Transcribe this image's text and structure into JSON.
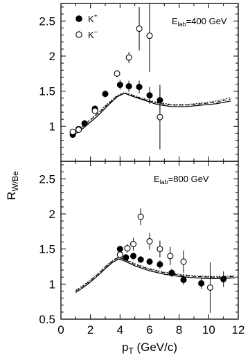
{
  "chart_data": [
    {
      "type": "scatter",
      "annotation": "E_lab=400 GeV",
      "ann_main": "E",
      "ann_sub": "lab",
      "ann_rest": "=400 GeV",
      "xlim": [
        0,
        12
      ],
      "ylim": [
        0.5,
        2.75
      ],
      "yticks": [
        0.5,
        1,
        1.5,
        2,
        2.5
      ],
      "ytick_labels": [
        "0.5",
        "1",
        "1.5",
        "2",
        "2.5"
      ],
      "legend": [
        {
          "label": "K",
          "sup": "+",
          "marker": "filled-circle"
        },
        {
          "label": "K",
          "sup": "−",
          "marker": "open-circle"
        }
      ],
      "series": [
        {
          "name": "K+",
          "marker": "filled",
          "points": [
            {
              "x": 0.8,
              "y": 0.88,
              "err": 0.03
            },
            {
              "x": 1.2,
              "y": 0.96,
              "err": 0.03
            },
            {
              "x": 1.6,
              "y": 1.04,
              "err": 0.03
            },
            {
              "x": 2.3,
              "y": 1.25,
              "err": 0.04
            },
            {
              "x": 3.0,
              "y": 1.46,
              "err": 0.05
            },
            {
              "x": 4.0,
              "y": 1.59,
              "err": 0.07
            },
            {
              "x": 4.6,
              "y": 1.57,
              "err": 0.08
            },
            {
              "x": 5.3,
              "y": 1.56,
              "err": 0.09
            },
            {
              "x": 6.0,
              "y": 1.44,
              "err": 0.12
            },
            {
              "x": 6.7,
              "y": 1.37,
              "err": 0.17
            }
          ]
        },
        {
          "name": "K−",
          "marker": "open",
          "points": [
            {
              "x": 0.8,
              "y": 0.92,
              "err": 0.03
            },
            {
              "x": 1.2,
              "y": 0.95,
              "err": 0.03
            },
            {
              "x": 2.3,
              "y": 1.22,
              "err": 0.04
            },
            {
              "x": 3.8,
              "y": 1.75,
              "err": 0.05
            },
            {
              "x": 4.6,
              "y": 1.98,
              "err": 0.08
            },
            {
              "x": 5.3,
              "y": 2.39,
              "err": 0.31
            },
            {
              "x": 6.0,
              "y": 2.29,
              "err": 0.52
            },
            {
              "x": 6.7,
              "y": 1.13,
              "err": 0.46
            }
          ]
        }
      ],
      "curves": [
        {
          "style": "solid",
          "points": [
            [
              0.7,
              0.85
            ],
            [
              1.5,
              0.97
            ],
            [
              2.5,
              1.15
            ],
            [
              3.2,
              1.3
            ],
            [
              3.8,
              1.42
            ],
            [
              4.3,
              1.47
            ],
            [
              4.8,
              1.43
            ],
            [
              5.5,
              1.38
            ],
            [
              6.5,
              1.31
            ],
            [
              7.5,
              1.28
            ],
            [
              8.5,
              1.28
            ],
            [
              9.5,
              1.3
            ],
            [
              10.5,
              1.32
            ],
            [
              11.5,
              1.36
            ]
          ]
        },
        {
          "style": "dashed",
          "points": [
            [
              0.7,
              0.87
            ],
            [
              1.5,
              1.0
            ],
            [
              2.5,
              1.18
            ],
            [
              3.2,
              1.32
            ],
            [
              3.8,
              1.43
            ],
            [
              4.3,
              1.47
            ],
            [
              4.8,
              1.44
            ],
            [
              5.5,
              1.39
            ],
            [
              6.5,
              1.33
            ],
            [
              7.5,
              1.3
            ],
            [
              8.5,
              1.3
            ],
            [
              9.5,
              1.32
            ],
            [
              10.5,
              1.34
            ],
            [
              11.5,
              1.39
            ]
          ]
        },
        {
          "style": "dotted",
          "points": [
            [
              0.7,
              0.88
            ],
            [
              1.5,
              1.01
            ],
            [
              2.5,
              1.19
            ],
            [
              3.2,
              1.33
            ],
            [
              3.8,
              1.44
            ],
            [
              4.3,
              1.48
            ],
            [
              4.8,
              1.45
            ],
            [
              5.5,
              1.4
            ],
            [
              6.5,
              1.34
            ],
            [
              7.5,
              1.31
            ],
            [
              8.5,
              1.31
            ],
            [
              9.5,
              1.33
            ],
            [
              10.5,
              1.36
            ],
            [
              11.5,
              1.41
            ]
          ]
        }
      ]
    },
    {
      "type": "scatter",
      "annotation": "E_lab=800 GeV",
      "ann_main": "E",
      "ann_sub": "lab",
      "ann_rest": "=800 GeV",
      "xlim": [
        0,
        12
      ],
      "ylim": [
        0.5,
        2.75
      ],
      "xticks": [
        0,
        2,
        4,
        6,
        8,
        10,
        12
      ],
      "xtick_labels": [
        "0",
        "2",
        "4",
        "6",
        "8",
        "10",
        "12"
      ],
      "yticks": [
        0.5,
        1,
        1.5,
        2,
        2.5
      ],
      "ytick_labels": [
        "0.5",
        "1",
        "1.5",
        "2",
        "2.5"
      ],
      "series": [
        {
          "name": "K+",
          "marker": "filled",
          "points": [
            {
              "x": 4.0,
              "y": 1.5,
              "err": 0.04
            },
            {
              "x": 4.4,
              "y": 1.38,
              "err": 0.04
            },
            {
              "x": 4.9,
              "y": 1.4,
              "err": 0.05
            },
            {
              "x": 5.4,
              "y": 1.35,
              "err": 0.05
            },
            {
              "x": 6.0,
              "y": 1.32,
              "err": 0.05
            },
            {
              "x": 6.7,
              "y": 1.28,
              "err": 0.06
            },
            {
              "x": 7.5,
              "y": 1.16,
              "err": 0.06
            },
            {
              "x": 8.3,
              "y": 1.06,
              "err": 0.07
            },
            {
              "x": 9.5,
              "y": 1.01,
              "err": 0.08
            },
            {
              "x": 11.0,
              "y": 1.07,
              "err": 0.11
            }
          ]
        },
        {
          "name": "K−",
          "marker": "open",
          "points": [
            {
              "x": 4.0,
              "y": 1.42,
              "err": 0.05
            },
            {
              "x": 4.5,
              "y": 1.51,
              "err": 0.06
            },
            {
              "x": 4.9,
              "y": 1.57,
              "err": 0.09
            },
            {
              "x": 5.4,
              "y": 1.96,
              "err": 0.12
            },
            {
              "x": 6.0,
              "y": 1.61,
              "err": 0.12
            },
            {
              "x": 6.7,
              "y": 1.5,
              "err": 0.12
            },
            {
              "x": 7.4,
              "y": 1.4,
              "err": 0.13
            },
            {
              "x": 8.3,
              "y": 1.32,
              "err": 0.16
            },
            {
              "x": 10.1,
              "y": 0.95,
              "err": 0.36
            }
          ]
        }
      ],
      "curves": [
        {
          "style": "solid",
          "points": [
            [
              1.0,
              0.88
            ],
            [
              1.5,
              0.95
            ],
            [
              2.0,
              1.03
            ],
            [
              2.5,
              1.12
            ],
            [
              3.0,
              1.22
            ],
            [
              3.5,
              1.31
            ],
            [
              3.9,
              1.36
            ],
            [
              4.3,
              1.33
            ],
            [
              5.0,
              1.26
            ],
            [
              6.0,
              1.19
            ],
            [
              7.0,
              1.14
            ],
            [
              8.0,
              1.11
            ],
            [
              9.0,
              1.09
            ],
            [
              10.0,
              1.08
            ],
            [
              11.0,
              1.08
            ],
            [
              11.8,
              1.09
            ]
          ]
        },
        {
          "style": "dashed",
          "points": [
            [
              1.0,
              0.9
            ],
            [
              1.5,
              0.97
            ],
            [
              2.0,
              1.05
            ],
            [
              2.5,
              1.14
            ],
            [
              3.0,
              1.24
            ],
            [
              3.5,
              1.33
            ],
            [
              3.9,
              1.38
            ],
            [
              4.3,
              1.35
            ],
            [
              5.0,
              1.28
            ],
            [
              6.0,
              1.21
            ],
            [
              7.0,
              1.16
            ],
            [
              8.0,
              1.13
            ],
            [
              9.0,
              1.11
            ],
            [
              10.0,
              1.1
            ],
            [
              11.0,
              1.1
            ],
            [
              11.8,
              1.11
            ]
          ]
        },
        {
          "style": "dotted",
          "points": [
            [
              1.0,
              0.91
            ],
            [
              1.5,
              0.98
            ],
            [
              2.0,
              1.06
            ],
            [
              2.5,
              1.15
            ],
            [
              3.0,
              1.25
            ],
            [
              3.5,
              1.34
            ],
            [
              3.9,
              1.39
            ],
            [
              4.3,
              1.36
            ],
            [
              5.0,
              1.29
            ],
            [
              6.0,
              1.22
            ],
            [
              7.0,
              1.17
            ],
            [
              8.0,
              1.14
            ],
            [
              9.0,
              1.12
            ],
            [
              10.0,
              1.11
            ],
            [
              11.0,
              1.11
            ],
            [
              11.8,
              1.12
            ]
          ]
        }
      ]
    }
  ],
  "ylabel_main": "R",
  "ylabel_sub": "W/Be",
  "xlabel_main": "p",
  "xlabel_sub": "T",
  "xlabel_rest": " (GeV/c)"
}
